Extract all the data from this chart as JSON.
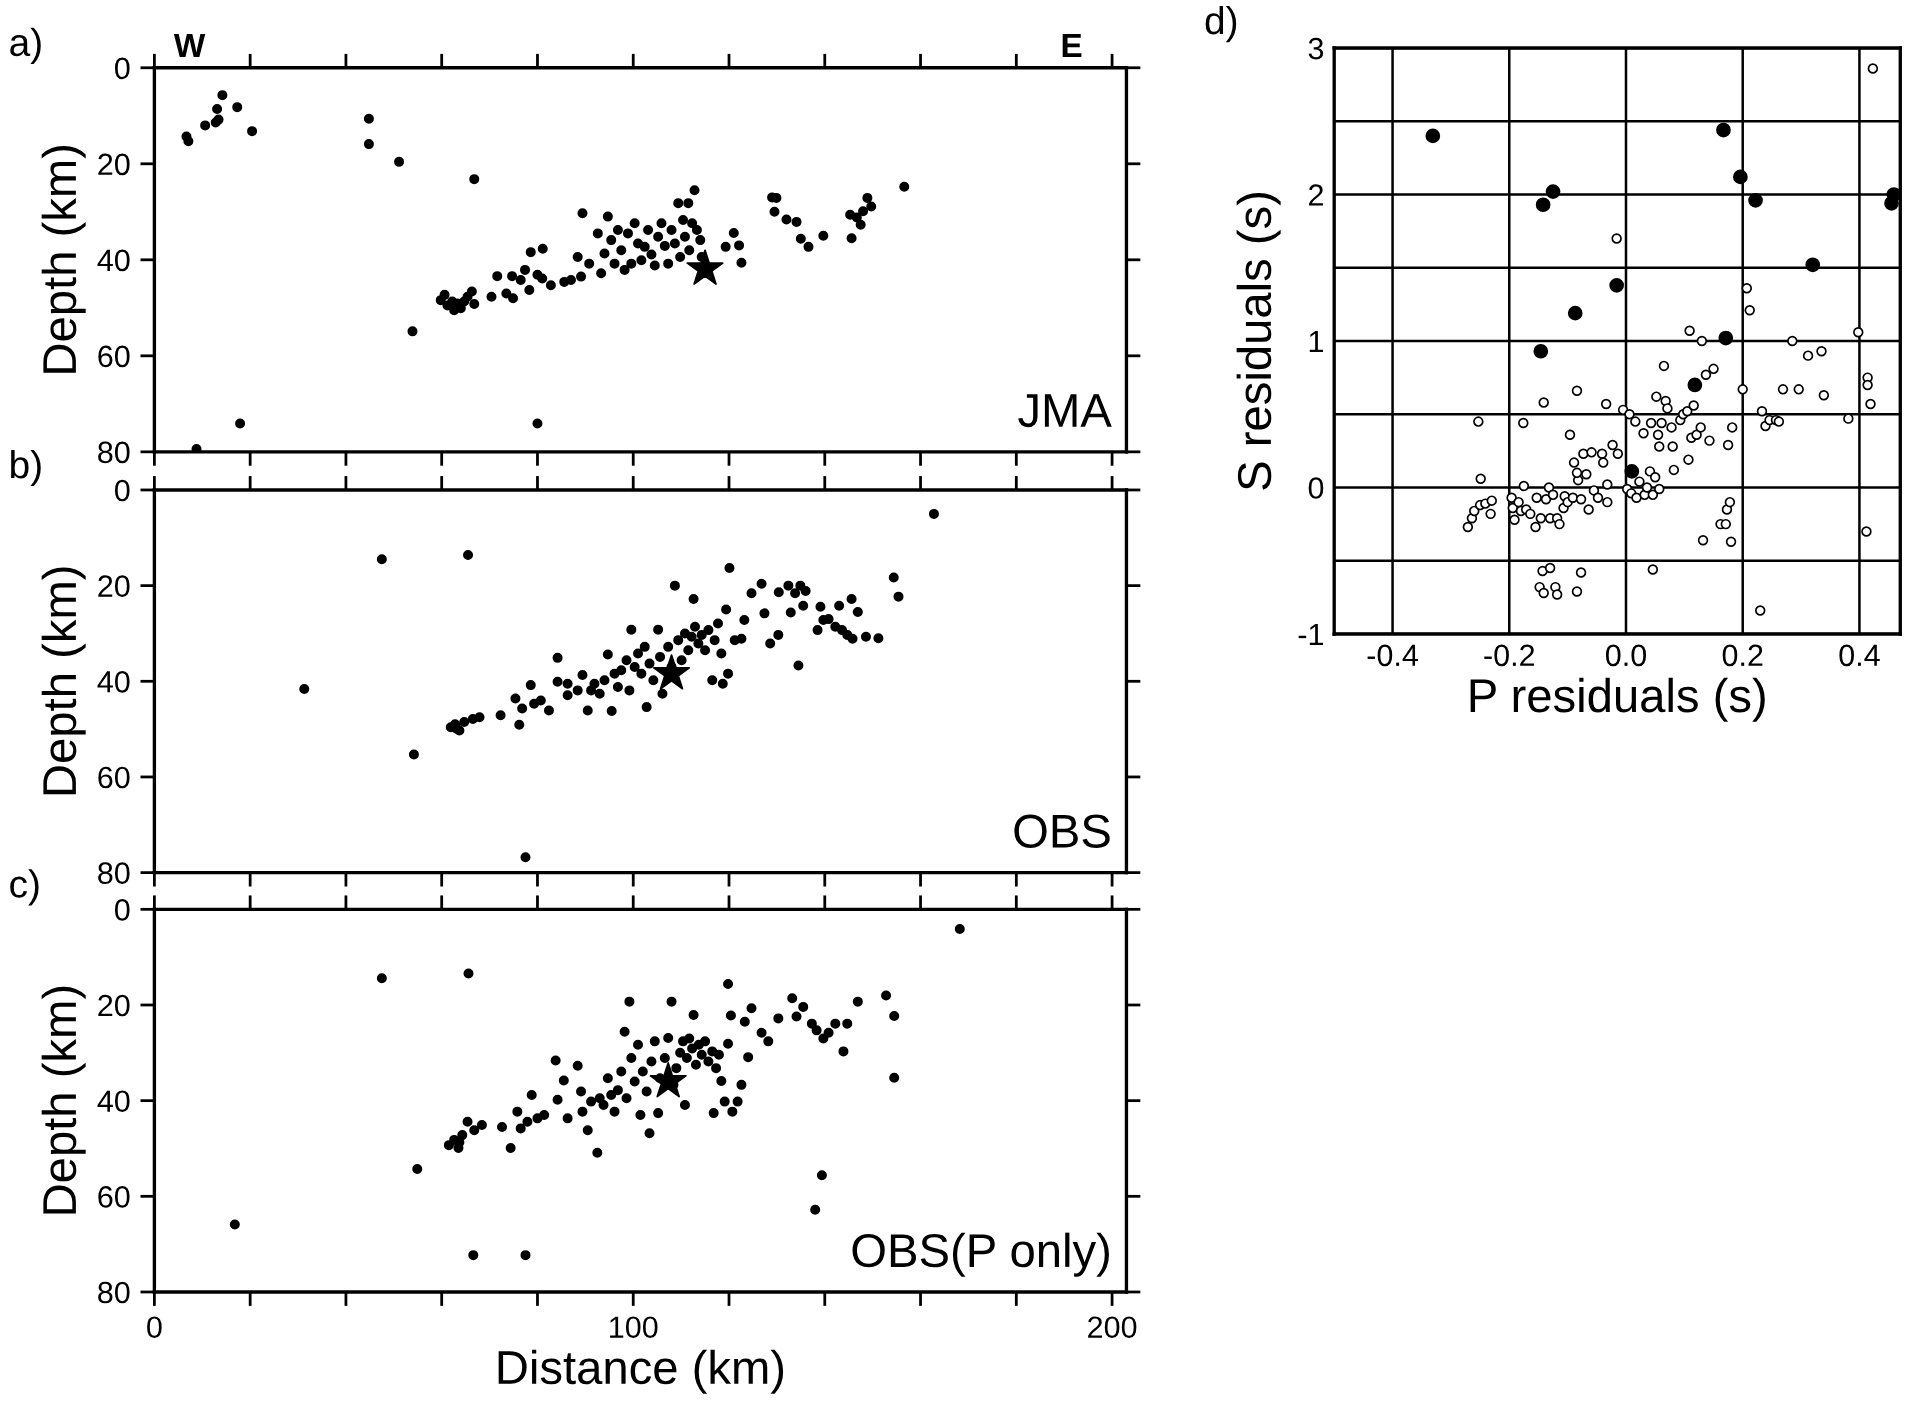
{
  "chart_data": [
    {
      "type": "scatter",
      "ylabel": "Depth (km)",
      "annotations": [
        "a)",
        "W",
        "E",
        "JMA"
      ],
      "xlim": [
        0,
        203
      ],
      "ylim": [
        80,
        0
      ],
      "xticks": [
        0,
        {
          "value": 20,
          "label": null
        },
        {
          "value": 40,
          "label": null
        },
        {
          "value": 60,
          "label": null
        },
        {
          "value": 80,
          "label": null
        },
        100,
        {
          "value": 120,
          "label": null
        },
        {
          "value": 140,
          "label": null
        },
        {
          "value": 160,
          "label": null
        },
        {
          "value": 180,
          "label": null
        },
        200
      ],
      "yticks": [
        0,
        20,
        40,
        60,
        80
      ],
      "tick_labels": "y",
      "grid": false,
      "legend": false,
      "series": [
        {
          "color": "#000000",
          "marker": "circle",
          "x": [
            6.7,
            7.1,
            10.6,
            12.8,
            13.1,
            14.2,
            13.4,
            17.3,
            20.4,
            44.8,
            44.8,
            51.1,
            66.8,
            53.9,
            17.9,
            8.8,
            80.0,
            59.8,
            61.2,
            62.6,
            64.0,
            65.4,
            66.3,
            60.6,
            63.3,
            64.7,
            66.8,
            62.2,
            70.4,
            71.6,
            73.5,
            74.9,
            74.7,
            76.5,
            77.4,
            78.6,
            78.3,
            80.0,
            81.1,
            81.0,
            82.8,
            85.6,
            87.0,
            88.4,
            89.4,
            89.1,
            90.8,
            92.6,
            93.3,
            94.0,
            94.7,
            95.4,
            96.1,
            96.8,
            97.5,
            98.2,
            98.9,
            99.6,
            100.3,
            101.0,
            101.7,
            102.4,
            103.1,
            103.8,
            104.5,
            105.2,
            105.9,
            106.6,
            107.3,
            108.0,
            108.7,
            109.4,
            109.8,
            110.4,
            110.8,
            111.5,
            111.7,
            112.3,
            112.8,
            113.3,
            114.0,
            114.3,
            119.3,
            121.0,
            122.1,
            122.6,
            129.0,
            129.9,
            129.5,
            132.0,
            134.1,
            135.0,
            136.6,
            139.7,
            145.3,
            145.6,
            146.7,
            147.5,
            148.0,
            148.9,
            149.7,
            156.6
          ],
          "values": [
            14.3,
            15.3,
            12.0,
            11.4,
            8.6,
            5.7,
            10.8,
            8.2,
            13.2,
            10.6,
            15.9,
            19.6,
            23.2,
            54.9,
            74.1,
            79.4,
            74.1,
            48.4,
            49.5,
            50.5,
            50.1,
            47.7,
            46.6,
            47.3,
            49.1,
            48.7,
            49.2,
            48.7,
            47.7,
            43.4,
            47.0,
            48.0,
            43.4,
            44.2,
            42.1,
            38.4,
            46.3,
            43.1,
            37.7,
            43.9,
            45.3,
            44.6,
            44.2,
            39.4,
            30.3,
            43.5,
            40.8,
            34.5,
            42.8,
            38.7,
            31.0,
            35.9,
            40.8,
            33.8,
            38.0,
            42.1,
            34.5,
            40.8,
            32.4,
            36.6,
            40.1,
            37.3,
            33.8,
            38.9,
            41.2,
            35.2,
            32.4,
            37.1,
            40.8,
            33.8,
            36.6,
            28.2,
            39.4,
            31.7,
            35.2,
            28.2,
            38.0,
            32.4,
            25.5,
            33.8,
            35.9,
            39.4,
            37.3,
            34.4,
            37.0,
            40.6,
            27.0,
            27.1,
            30.0,
            31.6,
            32.1,
            35.6,
            37.3,
            35.0,
            30.6,
            35.5,
            31.2,
            32.7,
            29.9,
            27.1,
            28.9,
            24.8
          ]
        },
        {
          "color": "#000000",
          "marker": "star",
          "x": [
            115.0
          ],
          "values": [
            41.9
          ]
        }
      ]
    },
    {
      "type": "scatter",
      "ylabel": "Depth (km)",
      "annotations": [
        "b)",
        "OBS"
      ],
      "xlim": [
        0,
        203
      ],
      "ylim": [
        80,
        0
      ],
      "xticks": [
        0,
        {
          "value": 20,
          "label": null
        },
        {
          "value": 40,
          "label": null
        },
        {
          "value": 60,
          "label": null
        },
        {
          "value": 80,
          "label": null
        },
        100,
        {
          "value": 120,
          "label": null
        },
        {
          "value": 140,
          "label": null
        },
        {
          "value": 160,
          "label": null
        },
        {
          "value": 180,
          "label": null
        },
        200
      ],
      "yticks": [
        0,
        20,
        40,
        60,
        80
      ],
      "tick_labels": "y",
      "grid": false,
      "legend": false,
      "series": [
        {
          "color": "#000000",
          "marker": "circle",
          "x": [
            47.5,
            65.5,
            31.3,
            54.2,
            77.5,
            162.8,
            154.4,
            155.4,
            61.9,
            62.8,
            63.7,
            64.7,
            66.5,
            67.9,
            63.1,
            72.3,
            75.4,
            76.2,
            76.8,
            78.6,
            79.3,
            80.7,
            82.4,
            84.2,
            84.2,
            86.3,
            86.3,
            88.4,
            89.4,
            90.5,
            91.2,
            91.9,
            93.0,
            94.0,
            94.7,
            95.5,
            96.1,
            96.8,
            97.5,
            98.6,
            99.2,
            99.6,
            100.3,
            101.0,
            101.7,
            102.4,
            102.8,
            103.4,
            104.2,
            105.2,
            105.6,
            106.1,
            107.3,
            108.0,
            108.7,
            109.4,
            110.1,
            110.8,
            111.5,
            112.2,
            112.6,
            112.9,
            113.6,
            114.3,
            115.0,
            115.7,
            116.5,
            117.0,
            117.7,
            118.4,
            118.7,
            119.4,
            119.8,
            120.1,
            121.2,
            122.6,
            123.2,
            124.7,
            126.8,
            127.4,
            128.6,
            130.3,
            130.4,
            132.4,
            132.9,
            133.8,
            134.5,
            134.9,
            135.5,
            136.0,
            138.5,
            139.1,
            139.7,
            140.8,
            142.2,
            143.0,
            143.6,
            144.7,
            145.6,
            145.8,
            146.9,
            148.6,
            151.2
          ],
          "values": [
            14.5,
            13.6,
            41.6,
            55.3,
            76.8,
            5.0,
            18.3,
            22.3,
            49.6,
            49.0,
            50.3,
            48.5,
            47.9,
            47.5,
            49.9,
            47.1,
            43.6,
            49.1,
            45.7,
            40.8,
            44.7,
            44.0,
            46.1,
            35.1,
            40.1,
            40.5,
            42.9,
            41.9,
            38.7,
            46.1,
            41.9,
            40.5,
            42.6,
            39.8,
            34.4,
            46.2,
            38.4,
            41.2,
            37.7,
            35.6,
            41.9,
            29.2,
            37.0,
            34.2,
            38.4,
            32.8,
            45.4,
            36.3,
            39.8,
            29.2,
            34.9,
            42.6,
            32.8,
            37.0,
            20.0,
            31.4,
            35.6,
            30.0,
            33.5,
            30.7,
            22.8,
            28.6,
            32.1,
            30.3,
            33.5,
            29.3,
            39.8,
            31.4,
            27.9,
            34.2,
            40.5,
            25.0,
            38.4,
            16.3,
            31.4,
            31.1,
            27.2,
            21.6,
            19.6,
            25.8,
            32.1,
            30.3,
            21.4,
            20.0,
            25.6,
            21.6,
            36.7,
            20.0,
            24.2,
            21.1,
            29.3,
            24.4,
            27.2,
            27.0,
            28.6,
            24.2,
            29.3,
            30.3,
            22.8,
            31.1,
            25.5,
            30.7,
            31.0
          ]
        },
        {
          "color": "#000000",
          "marker": "star",
          "x": [
            108.0
          ],
          "values": [
            38.4
          ]
        }
      ]
    },
    {
      "type": "scatter",
      "xlabel": "Distance (km)",
      "ylabel": "Depth (km)",
      "annotations": [
        "c)",
        "OBS(P only)"
      ],
      "xlim": [
        0,
        203
      ],
      "ylim": [
        80,
        0
      ],
      "xticks": [
        0,
        {
          "value": 20,
          "label": null
        },
        {
          "value": 40,
          "label": null
        },
        {
          "value": 60,
          "label": null
        },
        {
          "value": 80,
          "label": null
        },
        100,
        {
          "value": 120,
          "label": null
        },
        {
          "value": 140,
          "label": null
        },
        {
          "value": 160,
          "label": null
        },
        {
          "value": 180,
          "label": null
        },
        200
      ],
      "yticks": [
        0,
        20,
        40,
        60,
        80
      ],
      "grid": false,
      "legend": false,
      "series": [
        {
          "color": "#000000",
          "marker": "circle",
          "x": [
            47.5,
            65.6,
            16.8,
            54.9,
            66.6,
            77.5,
            168.2,
            152.8,
            154.5,
            154.5,
            139.4,
            138.0,
            119.8,
            61.5,
            62.6,
            63.5,
            64.3,
            65.4,
            66.8,
            68.4,
            63.7,
            72.6,
            74.4,
            75.8,
            76.5,
            77.9,
            78.8,
            80.0,
            81.4,
            83.8,
            84.2,
            85.5,
            86.3,
            88.4,
            89.1,
            89.4,
            90.5,
            91.2,
            92.5,
            93.0,
            93.8,
            94.7,
            95.4,
            96.1,
            96.8,
            97.5,
            98.2,
            98.6,
            99.2,
            99.6,
            100.3,
            101.0,
            101.5,
            102.0,
            102.8,
            103.4,
            103.8,
            104.5,
            105.2,
            105.6,
            106.6,
            107.3,
            108.0,
            108.4,
            109.0,
            109.8,
            110.4,
            110.8,
            111.2,
            111.7,
            112.3,
            112.6,
            113.1,
            113.7,
            114.3,
            115.0,
            115.7,
            116.5,
            116.8,
            117.3,
            117.9,
            118.4,
            119.1,
            119.8,
            120.4,
            120.7,
            121.8,
            122.6,
            123.3,
            124.0,
            124.7,
            126.8,
            128.2,
            130.3,
            133.2,
            134.1,
            135.5,
            137.3,
            138.3,
            139.7,
            140.8,
            142.2,
            143.9,
            144.7,
            146.9
          ],
          "values": [
            14.4,
            13.4,
            65.9,
            54.3,
            72.3,
            72.3,
            4.1,
            18.0,
            22.3,
            35.2,
            55.6,
            62.8,
            15.6,
            49.3,
            48.2,
            49.9,
            47.2,
            44.4,
            46.2,
            45.1,
            48.7,
            45.5,
            49.9,
            42.3,
            45.8,
            44.4,
            38.8,
            43.7,
            43.0,
            31.6,
            39.8,
            35.8,
            43.7,
            32.7,
            38.1,
            42.3,
            46.2,
            40.2,
            50.9,
            39.5,
            40.9,
            35.3,
            38.8,
            42.3,
            37.8,
            33.9,
            25.6,
            39.5,
            19.3,
            31.1,
            36.0,
            28.3,
            43.0,
            33.9,
            38.1,
            46.8,
            31.8,
            27.6,
            42.6,
            35.3,
            31.1,
            26.9,
            19.3,
            36.7,
            33.2,
            30.0,
            27.6,
            40.9,
            31.1,
            27.0,
            29.1,
            22.1,
            32.5,
            28.3,
            30.4,
            27.6,
            31.8,
            29.7,
            42.6,
            33.2,
            30.4,
            35.9,
            40.2,
            28.1,
            22.2,
            42.3,
            40.2,
            36.7,
            23.5,
            30.9,
            20.7,
            25.8,
            27.6,
            22.8,
            18.6,
            22.4,
            20.4,
            23.9,
            25.3,
            27.0,
            25.8,
            23.9,
            29.7,
            23.9,
            19.3
          ]
        },
        {
          "color": "#000000",
          "marker": "star",
          "x": [
            107.3
          ],
          "values": [
            36.0
          ]
        }
      ]
    },
    {
      "type": "scatter",
      "xlabel": "P residuals (s)",
      "ylabel": "S residuals (s)",
      "annotations": [
        "d)"
      ],
      "xlim": [
        -0.5,
        0.47
      ],
      "ylim": [
        -1,
        3
      ],
      "xticks": [
        -0.4,
        -0.2,
        {
          "value": 0,
          "label": "0.0"
        },
        0.2,
        0.4
      ],
      "yticks": [
        -1,
        {
          "value": -0.5,
          "label": null
        },
        0,
        {
          "value": 0.5,
          "label": null
        },
        1,
        {
          "value": 1.5,
          "label": null
        },
        2,
        {
          "value": 2.5,
          "label": null
        },
        3
      ],
      "grid": true,
      "legend": false,
      "series": [
        {
          "color": "#000000",
          "marker": "circle",
          "x": [
            -0.331,
            -0.142,
            -0.125,
            -0.146,
            -0.087,
            -0.016,
            0.01,
            0.118,
            0.167,
            0.171,
            0.196,
            0.222,
            0.32,
            0.459,
            0.455
          ],
          "values": [
            2.4,
            1.93,
            2.02,
            0.93,
            1.19,
            1.38,
            0.11,
            0.7,
            2.44,
            1.02,
            2.12,
            1.96,
            1.52,
            2.0,
            1.94
          ]
        },
        {
          "color": "#ffffff",
          "marker": "circle",
          "x": [
            -0.253,
            -0.249,
            -0.271,
            -0.264,
            -0.26,
            -0.25,
            -0.241,
            -0.23,
            -0.232,
            -0.176,
            -0.175,
            -0.196,
            -0.194,
            -0.191,
            -0.184,
            -0.18,
            -0.171,
            -0.164,
            -0.155,
            -0.153,
            -0.146,
            -0.141,
            -0.137,
            -0.132,
            -0.13,
            -0.125,
            -0.118,
            -0.114,
            -0.107,
            -0.105,
            -0.1,
            -0.096,
            -0.091,
            -0.089,
            -0.084,
            -0.082,
            -0.084,
            -0.077,
            -0.073,
            -0.068,
            -0.064,
            -0.059,
            -0.055,
            -0.048,
            -0.041,
            -0.039,
            -0.034,
            -0.032,
            -0.032,
            -0.023,
            -0.016,
            -0.014,
            -0.005,
            0.002,
            0.006,
            0.009,
            0.016,
            0.018,
            0.023,
            0.03,
            0.032,
            0.036,
            0.041,
            0.043,
            0.046,
            0.046,
            0.05,
            0.052,
            0.055,
            0.057,
            0.057,
            0.061,
            0.065,
            0.068,
            0.071,
            0.078,
            0.08,
            0.082,
            0.093,
            0.098,
            0.105,
            0.107,
            0.109,
            0.112,
            0.116,
            0.121,
            0.128,
            0.13,
            0.132,
            0.137,
            0.143,
            0.15,
            0.162,
            0.171,
            0.173,
            0.175,
            0.178,
            0.18,
            0.182,
            0.2,
            0.207,
            0.212,
            0.23,
            0.233,
            0.239,
            0.246,
            0.257,
            0.262,
            0.269,
            0.285,
            0.296,
            0.312,
            0.335,
            0.339,
            0.381,
            0.398,
            0.412,
            0.414,
            0.414,
            0.419,
            0.423,
            -0.143,
            -0.13,
            -0.148,
            -0.141,
            -0.121,
            -0.118,
            -0.084,
            -0.077
          ],
          "values": [
            0.45,
            0.06,
            -0.27,
            -0.21,
            -0.16,
            -0.12,
            -0.11,
            -0.09,
            -0.18,
            0.44,
            0.01,
            -0.07,
            -0.14,
            -0.22,
            -0.1,
            -0.16,
            -0.15,
            -0.18,
            -0.27,
            -0.07,
            -0.21,
            0.58,
            -0.08,
            0.0,
            -0.21,
            -0.05,
            -0.21,
            -0.25,
            -0.14,
            -0.06,
            -0.1,
            0.36,
            -0.07,
            0.17,
            0.66,
            0.05,
            0.1,
            -0.08,
            0.23,
            0.09,
            -0.15,
            0.24,
            -0.02,
            -0.07,
            0.23,
            0.17,
            0.57,
            -0.1,
            0.02,
            0.29,
            1.7,
            0.23,
            0.53,
            -0.01,
            0.5,
            -0.04,
            0.45,
            -0.07,
            0.04,
            0.37,
            -0.05,
            0.0,
            0.11,
            0.44,
            -0.05,
            -0.56,
            0.07,
            0.62,
            0.36,
            0.28,
            -0.01,
            0.44,
            0.83,
            0.59,
            0.54,
            0.41,
            0.28,
            0.12,
            0.46,
            0.5,
            0.52,
            0.19,
            1.07,
            0.34,
            0.56,
            0.36,
            0.41,
            1.0,
            -0.36,
            0.77,
            0.32,
            0.81,
            -0.25,
            -0.25,
            -0.15,
            0.29,
            -0.1,
            -0.37,
            0.41,
            0.67,
            1.36,
            1.21,
            -0.84,
            0.52,
            0.42,
            0.46,
            0.46,
            0.45,
            0.67,
            1.0,
            0.67,
            0.9,
            0.93,
            0.63,
            0.47,
            1.06,
            -0.3,
            0.75,
            0.7,
            0.57,
            2.86,
            -0.57,
            -0.55,
            -0.68,
            -0.72,
            -0.68,
            -0.73,
            -0.71,
            -0.58
          ]
        }
      ]
    }
  ]
}
